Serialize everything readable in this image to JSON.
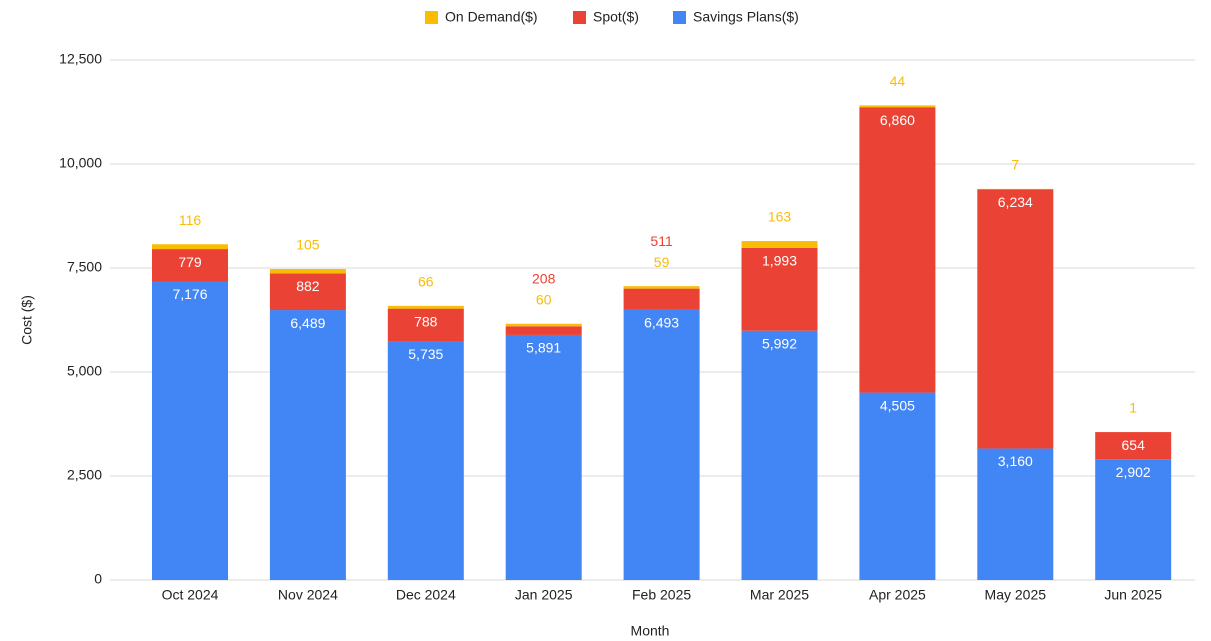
{
  "chart_data": {
    "type": "stacked_bar",
    "x_label": "Month",
    "y_label": "Cost ($)",
    "categories": [
      "Oct 2024",
      "Nov 2024",
      "Dec 2024",
      "Jan 2025",
      "Feb 2025",
      "Mar 2025",
      "Apr 2025",
      "May 2025",
      "Jun 2025"
    ],
    "series": [
      {
        "name": "Savings Plans($)",
        "color": "#4285f4",
        "values": [
          7176,
          6489,
          5735,
          5891,
          6493,
          5992,
          4505,
          3160,
          2902
        ],
        "value_labels": [
          "7,176",
          "6,489",
          "5,735",
          "5,891",
          "6,493",
          "5,992",
          "4,505",
          "3,160",
          "2,902"
        ]
      },
      {
        "name": "Spot($)",
        "color": "#ea4335",
        "values": [
          779,
          882,
          788,
          208,
          511,
          1993,
          6860,
          6234,
          654
        ],
        "value_labels": [
          "779",
          "882",
          "788",
          "208",
          "511",
          "1,993",
          "6,860",
          "6,234",
          "654"
        ]
      },
      {
        "name": "On Demand($)",
        "color": "#fbbc04",
        "values": [
          116,
          105,
          66,
          60,
          59,
          163,
          44,
          7,
          1
        ]
      }
    ],
    "ylim": [
      0,
      12500
    ],
    "yticks": [
      0,
      {
        "value": 2500,
        "label": "2,500"
      },
      {
        "value": 5000,
        "label": "5,000"
      },
      {
        "value": 7500,
        "label": "7,500"
      },
      {
        "value": 10000,
        "label": "10,000"
      },
      {
        "value": 12500,
        "label": "12,500"
      }
    ],
    "grid": true,
    "legend": "top"
  }
}
